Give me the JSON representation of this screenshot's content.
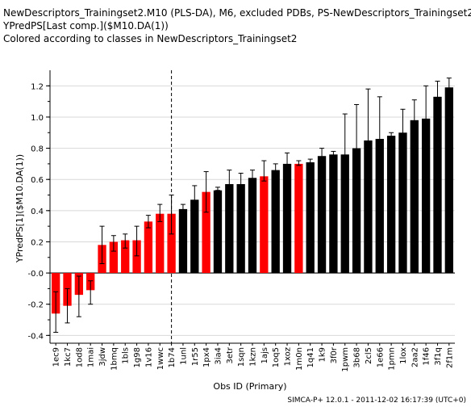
{
  "header": {
    "line1": "NewDescriptors_Trainingset2.M10 (PLS-DA), M6, excluded PDBs, PS-NewDescriptors_Trainingset2",
    "line2": "YPredPS[Last comp.]($M10.DA(1))",
    "line3": "Colored according to classes in NewDescriptors_Trainingset2"
  },
  "footer": "SIMCA-P+ 12.0.1 - 2011-12-02 16:17:39 (UTC+0)",
  "colors": {
    "red": "#ff0000",
    "black": "#000000",
    "grid": "#d8d8d8"
  },
  "chart_data": {
    "type": "bar",
    "xlabel": "Obs ID (Primary)",
    "ylabel": "YPredPS[1]($M10.DA(1))",
    "ylim": [
      -0.45,
      1.3
    ],
    "yticks": [
      -0.4,
      -0.2,
      0.0,
      0.2,
      0.4,
      0.6,
      0.8,
      1.0,
      1.2
    ],
    "ytick_labels": [
      "-0.4",
      "-0.2",
      "-0.0",
      "0.2",
      "0.4",
      "0.6",
      "0.8",
      "1.0",
      "1.2"
    ],
    "grid": true,
    "divider_after_index": 10,
    "categories": [
      "1ec9",
      "1kc7",
      "1od8",
      "1mai",
      "3jdw",
      "1bmq",
      "1bls",
      "1g98",
      "1v16",
      "1wwc",
      "1b74",
      "1unl",
      "1r55",
      "1px4",
      "3ia4",
      "3etr",
      "1sqn",
      "1kzn",
      "1ajs",
      "1oq5",
      "1xoz",
      "1m0n",
      "1q41",
      "1k9",
      "3f0r",
      "1pwm",
      "3b68",
      "2cl5",
      "1e66",
      "1pmn",
      "1lox",
      "2aa2",
      "1f46",
      "3f1q",
      "2f1m"
    ],
    "values": [
      -0.26,
      -0.21,
      -0.14,
      -0.11,
      0.18,
      0.2,
      0.21,
      0.21,
      0.33,
      0.38,
      0.38,
      0.41,
      0.47,
      0.52,
      0.53,
      0.57,
      0.57,
      0.61,
      0.62,
      0.66,
      0.7,
      0.7,
      0.71,
      0.75,
      0.76,
      0.76,
      0.8,
      0.85,
      0.86,
      0.88,
      0.9,
      0.98,
      0.99,
      1.13,
      1.19
    ],
    "error_low": [
      -0.38,
      -0.32,
      -0.28,
      -0.2,
      0.06,
      0.14,
      0.16,
      0.11,
      0.29,
      0.33,
      0.25,
      0.39,
      0.39,
      0.39,
      0.53,
      0.56,
      0.52,
      0.57,
      0.59,
      0.61,
      0.69,
      0.69,
      0.7,
      0.7,
      0.66,
      0.37,
      0.34,
      0.56,
      0.41,
      0.81,
      0.4,
      0.84,
      0.96,
      1.04,
      1.07
    ],
    "error_high": [
      -0.12,
      -0.1,
      -0.02,
      -0.05,
      0.3,
      0.24,
      0.25,
      0.3,
      0.37,
      0.44,
      0.5,
      0.44,
      0.56,
      0.65,
      0.55,
      0.66,
      0.64,
      0.66,
      0.72,
      0.7,
      0.77,
      0.72,
      0.73,
      0.8,
      0.78,
      1.02,
      1.08,
      1.18,
      1.13,
      0.9,
      1.05,
      1.11,
      1.2,
      1.23,
      1.25
    ],
    "classes": [
      "red",
      "red",
      "red",
      "red",
      "red",
      "red",
      "red",
      "red",
      "red",
      "red",
      "red",
      "black",
      "black",
      "red",
      "black",
      "black",
      "black",
      "black",
      "red",
      "black",
      "black",
      "red",
      "black",
      "black",
      "black",
      "black",
      "black",
      "black",
      "black",
      "black",
      "black",
      "black",
      "black",
      "black",
      "black"
    ]
  }
}
